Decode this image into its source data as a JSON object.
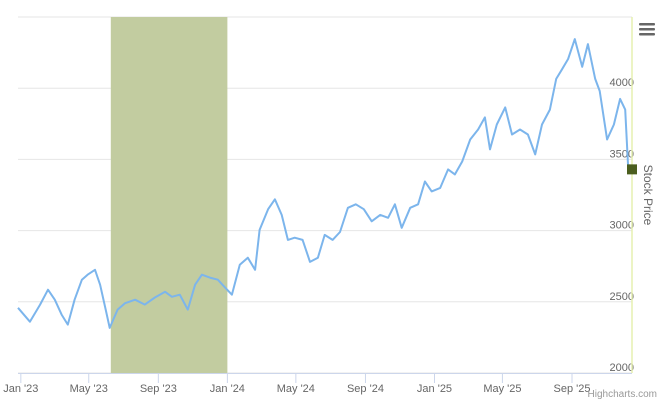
{
  "chart_data": {
    "type": "line",
    "title": "",
    "xlabel": "",
    "ylabel": "Stock Price",
    "xlim": [
      "2022-12-27",
      "2025-12-16"
    ],
    "ylim": [
      2000,
      4500
    ],
    "grid": true,
    "legend": "none",
    "x_ticks": [
      {
        "date": "2023-01-01",
        "label": "Jan '23"
      },
      {
        "date": "2023-05-01",
        "label": "May '23"
      },
      {
        "date": "2023-09-01",
        "label": "Sep '23"
      },
      {
        "date": "2024-01-01",
        "label": "Jan '24"
      },
      {
        "date": "2024-05-01",
        "label": "May '24"
      },
      {
        "date": "2024-09-01",
        "label": "Sep '24"
      },
      {
        "date": "2025-01-01",
        "label": "Jan '25"
      },
      {
        "date": "2025-05-01",
        "label": "May '25"
      },
      {
        "date": "2025-09-01",
        "label": "Sep '25"
      }
    ],
    "y_ticks": [
      2000,
      2500,
      3000,
      3500,
      4000
    ],
    "plot_band": {
      "from": "2023-06-09",
      "to": "2024-01-01",
      "color": "#c2cca0"
    },
    "series": [
      {
        "color": "#7cb5ec",
        "marker_color": "#4b5e1e",
        "points": [
          [
            "2022-12-27",
            2458
          ],
          [
            "2023-01-17",
            2360
          ],
          [
            "2023-02-04",
            2480
          ],
          [
            "2023-02-18",
            2585
          ],
          [
            "2023-03-02",
            2515
          ],
          [
            "2023-03-14",
            2410
          ],
          [
            "2023-03-25",
            2340
          ],
          [
            "2023-04-06",
            2515
          ],
          [
            "2023-04-19",
            2655
          ],
          [
            "2023-04-29",
            2690
          ],
          [
            "2023-05-12",
            2725
          ],
          [
            "2023-05-21",
            2620
          ],
          [
            "2023-05-31",
            2445
          ],
          [
            "2023-06-07",
            2317
          ],
          [
            "2023-06-21",
            2445
          ],
          [
            "2023-07-04",
            2490
          ],
          [
            "2023-07-22",
            2515
          ],
          [
            "2023-08-08",
            2480
          ],
          [
            "2023-08-26",
            2530
          ],
          [
            "2023-09-13",
            2570
          ],
          [
            "2023-09-25",
            2535
          ],
          [
            "2023-10-09",
            2550
          ],
          [
            "2023-10-23",
            2445
          ],
          [
            "2023-11-05",
            2620
          ],
          [
            "2023-11-17",
            2690
          ],
          [
            "2023-12-01",
            2670
          ],
          [
            "2023-12-15",
            2655
          ],
          [
            "2023-12-28",
            2600
          ],
          [
            "2024-01-09",
            2550
          ],
          [
            "2024-01-23",
            2760
          ],
          [
            "2024-02-06",
            2810
          ],
          [
            "2024-02-19",
            2725
          ],
          [
            "2024-02-27",
            3005
          ],
          [
            "2024-03-13",
            3150
          ],
          [
            "2024-03-25",
            3220
          ],
          [
            "2024-04-06",
            3110
          ],
          [
            "2024-04-17",
            2935
          ],
          [
            "2024-04-29",
            2950
          ],
          [
            "2024-05-13",
            2935
          ],
          [
            "2024-05-26",
            2780
          ],
          [
            "2024-06-09",
            2810
          ],
          [
            "2024-06-21",
            2970
          ],
          [
            "2024-07-05",
            2935
          ],
          [
            "2024-07-18",
            2990
          ],
          [
            "2024-08-01",
            3160
          ],
          [
            "2024-08-15",
            3185
          ],
          [
            "2024-08-29",
            3150
          ],
          [
            "2024-09-12",
            3065
          ],
          [
            "2024-09-27",
            3110
          ],
          [
            "2024-10-11",
            3090
          ],
          [
            "2024-10-23",
            3185
          ],
          [
            "2024-11-04",
            3020
          ],
          [
            "2024-11-19",
            3160
          ],
          [
            "2024-12-03",
            3185
          ],
          [
            "2024-12-15",
            3345
          ],
          [
            "2024-12-27",
            3275
          ],
          [
            "2025-01-11",
            3300
          ],
          [
            "2025-01-25",
            3430
          ],
          [
            "2025-02-06",
            3395
          ],
          [
            "2025-02-19",
            3485
          ],
          [
            "2025-03-05",
            3640
          ],
          [
            "2025-03-19",
            3710
          ],
          [
            "2025-03-31",
            3795
          ],
          [
            "2025-04-09",
            3570
          ],
          [
            "2025-04-21",
            3745
          ],
          [
            "2025-05-06",
            3865
          ],
          [
            "2025-05-18",
            3675
          ],
          [
            "2025-06-01",
            3710
          ],
          [
            "2025-06-15",
            3675
          ],
          [
            "2025-06-28",
            3535
          ],
          [
            "2025-07-10",
            3745
          ],
          [
            "2025-07-24",
            3850
          ],
          [
            "2025-08-04",
            4065
          ],
          [
            "2025-08-14",
            4130
          ],
          [
            "2025-08-25",
            4205
          ],
          [
            "2025-09-06",
            4345
          ],
          [
            "2025-09-19",
            4150
          ],
          [
            "2025-09-29",
            4310
          ],
          [
            "2025-10-12",
            4065
          ],
          [
            "2025-10-20",
            3980
          ],
          [
            "2025-11-02",
            3640
          ],
          [
            "2025-11-14",
            3745
          ],
          [
            "2025-11-25",
            3925
          ],
          [
            "2025-12-04",
            3850
          ],
          [
            "2025-12-09",
            3465
          ],
          [
            "2025-12-16",
            3430
          ]
        ]
      }
    ]
  },
  "menu_icon": "hamburger-menu-icon",
  "credit": "Highcharts.com"
}
